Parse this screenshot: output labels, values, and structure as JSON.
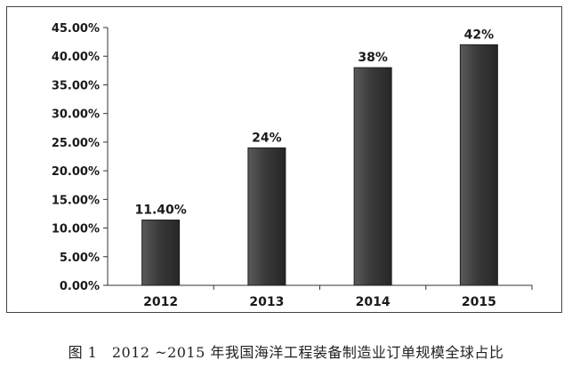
{
  "caption": "图 1　2012 ~2015 年我国海洋工程装备制造业订单规模全球占比",
  "colors": {
    "bar": "#3a3a3a",
    "bar_edge": "#1e1e1e",
    "axis": "#333333",
    "frame": "#444444"
  },
  "chart_data": {
    "type": "bar",
    "categories": [
      "2012",
      "2013",
      "2014",
      "2015"
    ],
    "values": [
      11.4,
      24,
      38,
      42
    ],
    "data_labels": [
      "11.40%",
      "24%",
      "38%",
      "42%"
    ],
    "ylim": [
      0,
      45
    ],
    "y_ticks": [
      0,
      5,
      10,
      15,
      20,
      25,
      30,
      35,
      40,
      45
    ],
    "y_tick_labels": [
      "0.00%",
      "5.00%",
      "10.00%",
      "15.00%",
      "20.00%",
      "25.00%",
      "30.00%",
      "35.00%",
      "40.00%",
      "45.00%"
    ],
    "title": "",
    "xlabel": "",
    "ylabel": "",
    "grid": false,
    "legend": "none"
  }
}
